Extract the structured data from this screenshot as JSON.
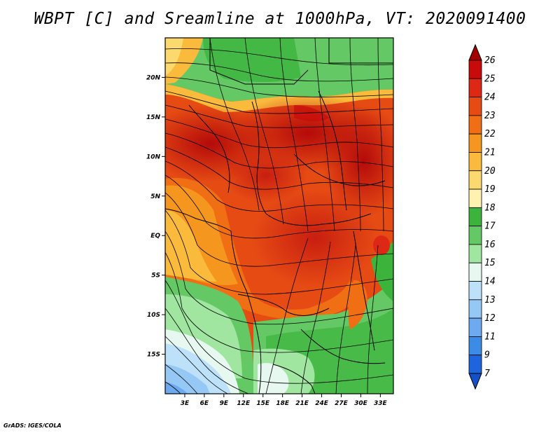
{
  "title": "WBPT [C] and Sreamline at 1000hPa, VT: 2020091400",
  "footer": "GrADS: IGES/COLA",
  "lat_labels": [
    "20N",
    "15N",
    "10N",
    "5N",
    "EQ",
    "5S",
    "10S",
    "15S"
  ],
  "lat_values": [
    20,
    15,
    10,
    5,
    0,
    -5,
    -10,
    -15
  ],
  "lon_labels": [
    "3E",
    "6E",
    "9E",
    "12E",
    "15E",
    "18E",
    "21E",
    "24E",
    "27E",
    "30E",
    "33E"
  ],
  "lon_values": [
    3,
    6,
    9,
    12,
    15,
    18,
    21,
    24,
    27,
    30,
    33
  ],
  "lon_range": [
    0,
    35
  ],
  "lat_range": [
    -20,
    25
  ],
  "colorbar": {
    "labels": [
      "26",
      "25",
      "24",
      "23",
      "22",
      "21",
      "20",
      "19",
      "18",
      "17",
      "16",
      "15",
      "14",
      "13",
      "12",
      "11",
      "9",
      "7"
    ],
    "colors": [
      "#a50000",
      "#c80a0a",
      "#dc2814",
      "#e64b14",
      "#f06e14",
      "#f5961e",
      "#faba3c",
      "#fcd96e",
      "#fff2b0",
      "#3cb43c",
      "#64c864",
      "#a0e6a0",
      "#e6f8f0",
      "#bee1fa",
      "#96c8f5",
      "#6eaaf0",
      "#3c8ce6",
      "#1e64dc",
      "#1450c8"
    ]
  }
}
